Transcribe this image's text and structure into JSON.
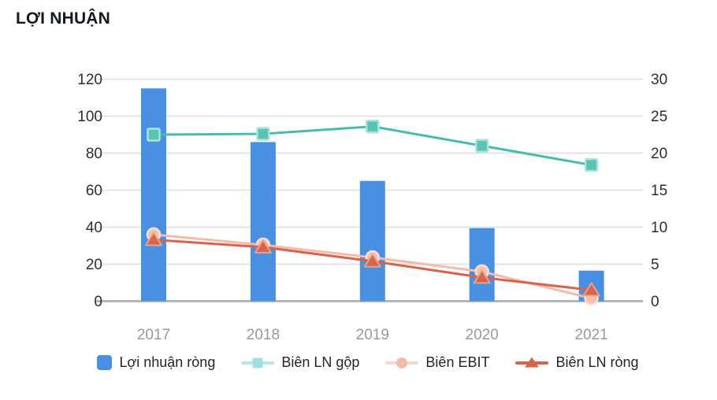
{
  "title": "LỢI NHUẬN",
  "chart_data": {
    "type": "bar+line combo",
    "categories": [
      "2017",
      "2018",
      "2019",
      "2020",
      "2021"
    ],
    "series": [
      {
        "name": "Lợi nhuận ròng",
        "type": "bar",
        "axis": "left",
        "color": "#4a90e2",
        "values": [
          115,
          86,
          65,
          39.5,
          16.5
        ]
      },
      {
        "name": "Biên LN gộp",
        "type": "line",
        "axis": "right",
        "marker": "square",
        "color": "#46bcae",
        "marker_fill": "#5ac3b2",
        "marker_stroke": "#a9e5da",
        "values": [
          22.5,
          22.6,
          23.6,
          21,
          18.4
        ]
      },
      {
        "name": "Biên EBIT",
        "type": "line",
        "axis": "right",
        "marker": "circle",
        "color": "#f3bcaa",
        "marker_fill": "#f3c1ae",
        "marker_stroke": "#fadfd4",
        "values": [
          9,
          7.6,
          5.9,
          4,
          0.4
        ]
      },
      {
        "name": "Biên LN ròng",
        "type": "line",
        "axis": "right",
        "marker": "triangle",
        "color": "#d9624c",
        "marker_fill": "#d8644e",
        "marker_stroke": "#e8a18a",
        "values": [
          8.3,
          7.3,
          5.4,
          3.2,
          1.5
        ]
      }
    ],
    "left_axis": {
      "ticks": [
        120,
        100,
        80,
        60,
        40,
        20,
        0
      ],
      "range": [
        0,
        120
      ]
    },
    "right_axis": {
      "ticks": [
        30,
        25,
        20,
        15,
        10,
        5,
        0
      ],
      "range": [
        0,
        30
      ]
    },
    "grid": true,
    "legend_position": "bottom"
  },
  "colors": {
    "grid_line": "#e4e4e6",
    "zero_line": "#b4b7ba",
    "y_tick_text": "#2b2d31",
    "x_tick_text": "#97999e",
    "legend_gop_line": "#b7e5e8",
    "legend_gop_marker": "#a3dee2",
    "legend_ebit_line": "#f6d9cd",
    "legend_ebit_marker": "#efbcab",
    "legend_rong_line": "#d8644e",
    "legend_rong_marker": "#d8644e",
    "bar_legend_swatch": "#4a90e2"
  }
}
